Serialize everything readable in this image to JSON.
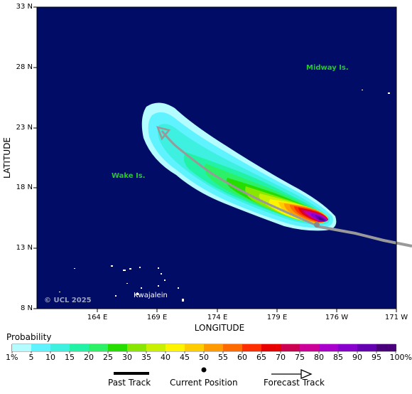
{
  "axes": {
    "xlabel": "LONGITUDE",
    "ylabel": "LATITUDE",
    "lat_ticks": [
      "33 N",
      "28 N",
      "23 N",
      "18 N",
      "13 N",
      "8 N"
    ],
    "lon_ticks": [
      "164 E",
      "169 E",
      "174 E",
      "179 E",
      "176 W",
      "171 W"
    ]
  },
  "places": {
    "midway": "Midway Is.",
    "wake": "Wake Is.",
    "kwajalein": "Kwajalein"
  },
  "copyright": "© UCL 2025",
  "colorbar": {
    "title": "Probability",
    "labels": [
      "1%",
      "5",
      "10",
      "15",
      "20",
      "25",
      "30",
      "35",
      "40",
      "45",
      "50",
      "55",
      "60",
      "65",
      "70",
      "75",
      "80",
      "85",
      "90",
      "95",
      "100%"
    ],
    "colors": [
      "#b4fcff",
      "#5ff2ff",
      "#3ef0e0",
      "#22f2a6",
      "#2cf066",
      "#26dd00",
      "#88e600",
      "#c8f000",
      "#fff400",
      "#ffcc00",
      "#ff9a00",
      "#ff6a00",
      "#ff2e00",
      "#e80000",
      "#cc0050",
      "#cc0099",
      "#aa00cc",
      "#8800cc",
      "#6400b0",
      "#4a007a"
    ]
  },
  "legend": {
    "past_track": "Past Track",
    "current_position": "Current Position",
    "forecast_track": "Forecast Track"
  },
  "colors": {
    "ocean": "#000c66",
    "track": "#999999",
    "place_label": "#22cc22"
  }
}
